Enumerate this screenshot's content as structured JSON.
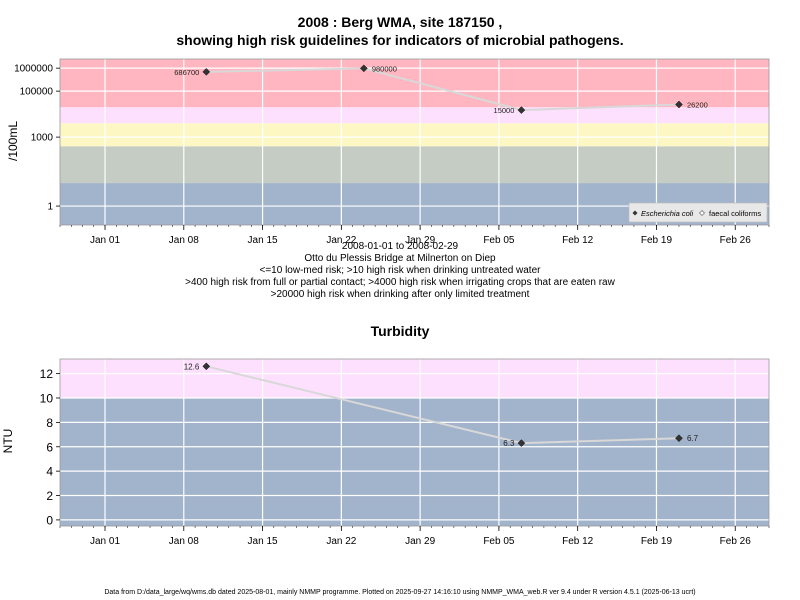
{
  "charts": {
    "top": {
      "title_line1": "2008 : Berg WMA, site 187150 ,",
      "title_line2": "showing high risk guidelines for indicators of microbial pathogens.",
      "ylabel": "/100mL"
    },
    "bottom": {
      "title": "Turbidity",
      "ylabel": "NTU"
    }
  },
  "info": {
    "date_range": "2008-01-01 to 2008-02-29",
    "site_name": "Otto du Plessis Bridge at Milnerton on Diep",
    "guideline_1": "<=10 low-med risk; >10 high risk when drinking untreated water",
    "guideline_2": ">400 high risk from full or partial contact; >4000 high risk when irrigating crops that are eaten raw",
    "guideline_3": ">20000 high risk when drinking after only limited treatment"
  },
  "legend": {
    "ecoli": "Escherichia coli",
    "fc": "faecal coliforms"
  },
  "footer": "Data from D:/data_large/wq/wms.db dated 2025-08-01, mainly NMMP programme. Plotted on 2025-09-27 14:16:10 using NMMP_WMA_web.R ver 9.4 under R version 4.5.1 (2025-06-13 ucrt)",
  "colors": {
    "band_blue": "#a2b3cc",
    "band_green": "#c4ccc4",
    "band_yellow": "#fdf7c4",
    "band_pink_light": "#fde0fd",
    "band_red": "#ffb6c1",
    "line": "#d8d8d8"
  },
  "chart_data": [
    {
      "type": "line",
      "scale": "log",
      "x_ticks": [
        "Jan 01",
        "Jan 08",
        "Jan 15",
        "Jan 22",
        "Jan 29",
        "Feb 05",
        "Feb 12",
        "Feb 19",
        "Feb 26"
      ],
      "x_tick_dates": [
        "2008-01-01",
        "2008-01-08",
        "2008-01-15",
        "2008-01-22",
        "2008-01-29",
        "2008-02-05",
        "2008-02-12",
        "2008-02-19",
        "2008-02-26"
      ],
      "xlim": [
        "2007-12-28",
        "2008-02-29"
      ],
      "y_ticks": [
        1,
        1000,
        100000,
        1000000
      ],
      "y_tick_labels": [
        "1",
        "1000",
        "100000",
        "1000000"
      ],
      "ylim": [
        0.15,
        2500000
      ],
      "bands": [
        {
          "from": 0.15,
          "to": 10,
          "color": "#a2b3cc"
        },
        {
          "from": 10,
          "to": 400,
          "color": "#c4ccc4"
        },
        {
          "from": 400,
          "to": 4000,
          "color": "#fdf7c4"
        },
        {
          "from": 4000,
          "to": 20000,
          "color": "#fde0fd"
        },
        {
          "from": 20000,
          "to": 2500000,
          "color": "#ffb6c1"
        }
      ],
      "series": [
        {
          "name": "Escherichia coli",
          "points": [
            {
              "x": "2008-01-10",
              "y": 686700,
              "label": "686700"
            },
            {
              "x": "2008-01-24",
              "y": 980000,
              "label": "980000"
            },
            {
              "x": "2008-02-07",
              "y": 15000,
              "label": "15000"
            },
            {
              "x": "2008-02-21",
              "y": 26200,
              "label": "26200"
            }
          ]
        }
      ],
      "legend_position": "bottom-right"
    },
    {
      "type": "line",
      "title": "Turbidity",
      "ylabel": "NTU",
      "x_ticks": [
        "Jan 01",
        "Jan 08",
        "Jan 15",
        "Jan 22",
        "Jan 29",
        "Feb 05",
        "Feb 12",
        "Feb 19",
        "Feb 26"
      ],
      "x_tick_dates": [
        "2008-01-01",
        "2008-01-08",
        "2008-01-15",
        "2008-01-22",
        "2008-01-29",
        "2008-02-05",
        "2008-02-12",
        "2008-02-19",
        "2008-02-26"
      ],
      "xlim": [
        "2007-12-28",
        "2008-02-29"
      ],
      "y_ticks": [
        0,
        2,
        4,
        6,
        8,
        10,
        12
      ],
      "y_tick_labels": [
        "0",
        "2",
        "4",
        "6",
        "8",
        "10",
        "12"
      ],
      "ylim": [
        -0.5,
        13.2
      ],
      "bands": [
        {
          "from": -0.5,
          "to": 10,
          "color": "#a2b3cc"
        },
        {
          "from": 10,
          "to": 13.2,
          "color": "#fde0fd"
        }
      ],
      "series": [
        {
          "points": [
            {
              "x": "2008-01-10",
              "y": 12.6,
              "label": "12.6"
            },
            {
              "x": "2008-02-07",
              "y": 6.3,
              "label": "6.3"
            },
            {
              "x": "2008-02-21",
              "y": 6.7,
              "label": "6.7"
            }
          ]
        }
      ]
    }
  ]
}
